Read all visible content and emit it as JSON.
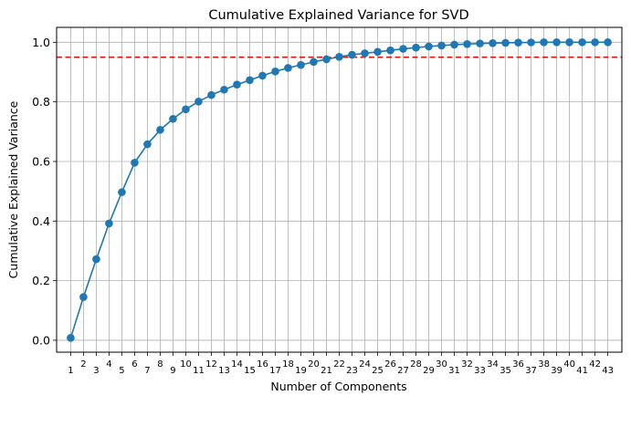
{
  "chart_data": {
    "type": "line",
    "title": "Cumulative Explained Variance for SVD",
    "xlabel": "Number of Components",
    "ylabel": "Cumulative Explained Variance",
    "x": [
      1,
      2,
      3,
      4,
      5,
      6,
      7,
      8,
      9,
      10,
      11,
      12,
      13,
      14,
      15,
      16,
      17,
      18,
      19,
      20,
      21,
      22,
      23,
      24,
      25,
      26,
      27,
      28,
      29,
      30,
      31,
      32,
      33,
      34,
      35,
      36,
      37,
      38,
      39,
      40,
      41,
      42,
      43
    ],
    "series": [
      {
        "values": [
          0.008,
          0.145,
          0.272,
          0.392,
          0.497,
          0.596,
          0.658,
          0.706,
          0.743,
          0.775,
          0.801,
          0.823,
          0.841,
          0.858,
          0.873,
          0.888,
          0.902,
          0.914,
          0.924,
          0.934,
          0.943,
          0.951,
          0.958,
          0.963,
          0.968,
          0.973,
          0.978,
          0.982,
          0.986,
          0.989,
          0.992,
          0.994,
          0.996,
          0.997,
          0.998,
          0.999,
          0.9995,
          1.0,
          1.0,
          1.0,
          1.0,
          1.0,
          1.0
        ]
      }
    ],
    "threshold": 0.95,
    "yticks": [
      "0.0",
      "0.2",
      "0.4",
      "0.6",
      "0.8",
      "1.0"
    ],
    "ylim": [
      -0.04,
      1.05
    ],
    "xlim": [
      -0.1,
      44.1
    ],
    "grid": true,
    "colors": {
      "series": "#1f77b4",
      "threshold": "#e8150f",
      "grid": "#b0b0b0"
    }
  }
}
